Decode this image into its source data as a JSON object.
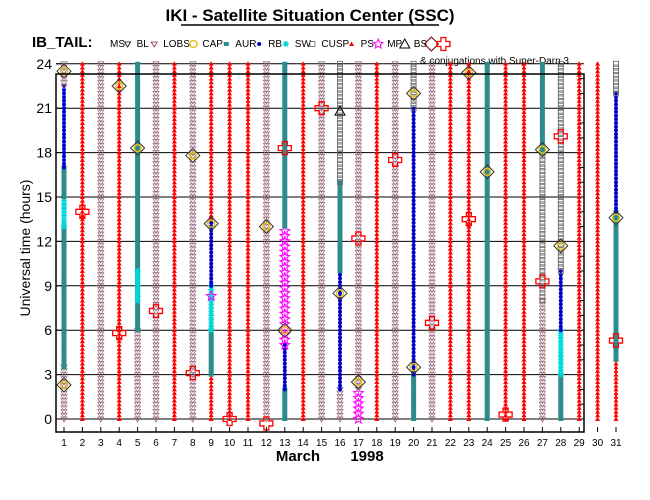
{
  "header": {
    "title": "IKI - Satellite Situation Center (SSC)",
    "satellite": "IB_TAIL:",
    "conjunction_note": "& conjugations with Super-Darn 3"
  },
  "legend": [
    {
      "label": "MS",
      "marker": "triangle-down-open",
      "color": "#000000"
    },
    {
      "label": "BL",
      "marker": "triangle-down-open",
      "color": "#8b2252"
    },
    {
      "label": "LOBS",
      "marker": "ring",
      "color": "#e6c21a"
    },
    {
      "label": "CAP",
      "marker": "square",
      "color": "#2e8b8b"
    },
    {
      "label": "AUR",
      "marker": "dot",
      "color": "#0000cc"
    },
    {
      "label": "RB",
      "marker": "asterisk",
      "color": "#00d8d8"
    },
    {
      "label": "SW",
      "marker": "square-open",
      "color": "#666666"
    },
    {
      "label": "CUSP",
      "marker": "triangle-up",
      "color": "#ff0000"
    },
    {
      "label": "PS",
      "marker": "star",
      "color": "#ff00ff"
    },
    {
      "label": "MP",
      "marker": "triangle-up-open",
      "color": "#000000"
    },
    {
      "label": "BS",
      "marker": "diamond-open",
      "color": "#6b0000"
    },
    {
      "label": "",
      "marker": "cross-open",
      "color": "#ff0000"
    }
  ],
  "chart_data": {
    "type": "scatter",
    "title": "IKI - Satellite Situation Center (SSC)",
    "xlabel": "March",
    "xlabel_year": "1998",
    "ylabel": "Universal time (hours)",
    "xlim": [
      1,
      31
    ],
    "ylim": [
      0,
      24
    ],
    "x_ticks": [
      1,
      2,
      3,
      4,
      5,
      6,
      7,
      8,
      9,
      10,
      11,
      12,
      13,
      14,
      15,
      16,
      17,
      18,
      19,
      20,
      21,
      22,
      23,
      24,
      25,
      26,
      27,
      28,
      29,
      30,
      31
    ],
    "y_ticks": [
      0,
      3,
      6,
      9,
      12,
      15,
      18,
      21,
      24
    ],
    "grid": true,
    "region_colors": {
      "MS": "#9a6b83",
      "CAP": "#2e8b8b",
      "AUR": "#0000cc",
      "RB": "#00d8d8",
      "SW": "#666666",
      "CUSP": "#ff0000",
      "PS": "#ff00ff"
    },
    "region_segments": [
      {
        "day": 1,
        "from": 0,
        "to": 3.5,
        "region": "MS"
      },
      {
        "day": 1,
        "from": 3.5,
        "to": 13,
        "region": "CAP"
      },
      {
        "day": 1,
        "from": 13,
        "to": 15,
        "region": "RB"
      },
      {
        "day": 1,
        "from": 15,
        "to": 17,
        "region": "CAP"
      },
      {
        "day": 1,
        "from": 17,
        "to": 22.5,
        "region": "AUR"
      },
      {
        "day": 1,
        "from": 22.5,
        "to": 24,
        "region": "MS"
      },
      {
        "day": 2,
        "from": 0,
        "to": 24,
        "region": "CUSP"
      },
      {
        "day": 3,
        "from": 0,
        "to": 24,
        "region": "MS"
      },
      {
        "day": 4,
        "from": 0,
        "to": 24,
        "region": "CUSP"
      },
      {
        "day": 5,
        "from": 0,
        "to": 6,
        "region": "MS"
      },
      {
        "day": 5,
        "from": 6,
        "to": 18,
        "region": "CAP"
      },
      {
        "day": 5,
        "from": 8,
        "to": 10,
        "region": "RB"
      },
      {
        "day": 5,
        "from": 18,
        "to": 24,
        "region": "CAP"
      },
      {
        "day": 6,
        "from": 0,
        "to": 24,
        "region": "MS"
      },
      {
        "day": 7,
        "from": 0,
        "to": 24,
        "region": "CUSP"
      },
      {
        "day": 8,
        "from": 0,
        "to": 24,
        "region": "MS"
      },
      {
        "day": 9,
        "from": 0,
        "to": 3,
        "region": "CUSP"
      },
      {
        "day": 9,
        "from": 3,
        "to": 6,
        "region": "CAP"
      },
      {
        "day": 9,
        "from": 6,
        "to": 9,
        "region": "RB"
      },
      {
        "day": 9,
        "from": 9,
        "to": 13.5,
        "region": "AUR"
      },
      {
        "day": 9,
        "from": 13.5,
        "to": 24,
        "region": "CUSP"
      },
      {
        "day": 10,
        "from": 0,
        "to": 24,
        "region": "CUSP"
      },
      {
        "day": 11,
        "from": 0,
        "to": 24,
        "region": "CUSP"
      },
      {
        "day": 12,
        "from": 0,
        "to": 24,
        "region": "MS"
      },
      {
        "day": 13,
        "from": 0,
        "to": 2,
        "region": "CAP"
      },
      {
        "day": 13,
        "from": 2,
        "to": 5,
        "region": "AUR"
      },
      {
        "day": 13,
        "from": 5,
        "to": 13,
        "region": "PS"
      },
      {
        "day": 13,
        "from": 13,
        "to": 24,
        "region": "CAP"
      },
      {
        "day": 14,
        "from": 0,
        "to": 24,
        "region": "CUSP"
      },
      {
        "day": 15,
        "from": 0,
        "to": 24,
        "region": "MS"
      },
      {
        "day": 16,
        "from": 0,
        "to": 2,
        "region": "MS"
      },
      {
        "day": 16,
        "from": 2,
        "to": 10,
        "region": "AUR"
      },
      {
        "day": 16,
        "from": 10,
        "to": 16,
        "region": "CAP"
      },
      {
        "day": 16,
        "from": 16,
        "to": 24,
        "region": "SW"
      },
      {
        "day": 17,
        "from": 0,
        "to": 2,
        "region": "PS"
      },
      {
        "day": 17,
        "from": 2,
        "to": 24,
        "region": "MS"
      },
      {
        "day": 18,
        "from": 0,
        "to": 24,
        "region": "CUSP"
      },
      {
        "day": 19,
        "from": 0,
        "to": 24,
        "region": "MS"
      },
      {
        "day": 20,
        "from": 0,
        "to": 3,
        "region": "CAP"
      },
      {
        "day": 20,
        "from": 3,
        "to": 9,
        "region": "AUR"
      },
      {
        "day": 20,
        "from": 9,
        "to": 21,
        "region": "AUR"
      },
      {
        "day": 20,
        "from": 21,
        "to": 24,
        "region": "SW"
      },
      {
        "day": 21,
        "from": 0,
        "to": 24,
        "region": "MS"
      },
      {
        "day": 22,
        "from": 0,
        "to": 24,
        "region": "CUSP"
      },
      {
        "day": 23,
        "from": 0,
        "to": 24,
        "region": "CUSP"
      },
      {
        "day": 24,
        "from": 0,
        "to": 24,
        "region": "CAP"
      },
      {
        "day": 25,
        "from": 0,
        "to": 24,
        "region": "CUSP"
      },
      {
        "day": 26,
        "from": 0,
        "to": 24,
        "region": "CUSP"
      },
      {
        "day": 27,
        "from": 0,
        "to": 8,
        "region": "MS"
      },
      {
        "day": 27,
        "from": 8,
        "to": 18,
        "region": "SW"
      },
      {
        "day": 27,
        "from": 18,
        "to": 24,
        "region": "CAP"
      },
      {
        "day": 28,
        "from": 0,
        "to": 3,
        "region": "CAP"
      },
      {
        "day": 28,
        "from": 3,
        "to": 6,
        "region": "RB"
      },
      {
        "day": 28,
        "from": 6,
        "to": 10,
        "region": "AUR"
      },
      {
        "day": 28,
        "from": 10,
        "to": 24,
        "region": "SW"
      },
      {
        "day": 29,
        "from": 0,
        "to": 24,
        "region": "CUSP"
      },
      {
        "day": 30,
        "from": 0,
        "to": 24,
        "region": "CUSP"
      },
      {
        "day": 31,
        "from": 0,
        "to": 4,
        "region": "CUSP"
      },
      {
        "day": 31,
        "from": 4,
        "to": 14,
        "region": "CAP"
      },
      {
        "day": 31,
        "from": 14,
        "to": 22,
        "region": "AUR"
      },
      {
        "day": 31,
        "from": 22,
        "to": 24,
        "region": "SW"
      }
    ],
    "crossings": [
      {
        "day": 1,
        "ut": 23.5,
        "type": "BS"
      },
      {
        "day": 1,
        "ut": 2.3,
        "type": "BS"
      },
      {
        "day": 2,
        "ut": 14,
        "type": "conj"
      },
      {
        "day": 4,
        "ut": 22.5,
        "type": "BS"
      },
      {
        "day": 4,
        "ut": 5.8,
        "type": "conj"
      },
      {
        "day": 5,
        "ut": 18.3,
        "type": "BS"
      },
      {
        "day": 6,
        "ut": 7.3,
        "type": "conj"
      },
      {
        "day": 8,
        "ut": 17.8,
        "type": "BS"
      },
      {
        "day": 8,
        "ut": 3.1,
        "type": "conj"
      },
      {
        "day": 9,
        "ut": 13.2,
        "type": "BS"
      },
      {
        "day": 9,
        "ut": 8.3,
        "type": "PS"
      },
      {
        "day": 10,
        "ut": 0,
        "type": "conj"
      },
      {
        "day": 12,
        "ut": 13,
        "type": "BS"
      },
      {
        "day": 12,
        "ut": -0.3,
        "type": "conj"
      },
      {
        "day": 13,
        "ut": 18.3,
        "type": "conj"
      },
      {
        "day": 13,
        "ut": 6,
        "type": "BS"
      },
      {
        "day": 15,
        "ut": 21,
        "type": "conj"
      },
      {
        "day": 16,
        "ut": 20.8,
        "type": "MP"
      },
      {
        "day": 16,
        "ut": 8.5,
        "type": "BS"
      },
      {
        "day": 17,
        "ut": 12.2,
        "type": "conj"
      },
      {
        "day": 17,
        "ut": 2.5,
        "type": "BS"
      },
      {
        "day": 19,
        "ut": 17.5,
        "type": "conj"
      },
      {
        "day": 20,
        "ut": 22,
        "type": "BS"
      },
      {
        "day": 20,
        "ut": 3.5,
        "type": "BS"
      },
      {
        "day": 21,
        "ut": 6.5,
        "type": "conj"
      },
      {
        "day": 23,
        "ut": 23.4,
        "type": "BS"
      },
      {
        "day": 23,
        "ut": 13.5,
        "type": "conj"
      },
      {
        "day": 24,
        "ut": 16.7,
        "type": "BS"
      },
      {
        "day": 25,
        "ut": 0.3,
        "type": "conj"
      },
      {
        "day": 27,
        "ut": 18.2,
        "type": "BS"
      },
      {
        "day": 27,
        "ut": 9.3,
        "type": "conj"
      },
      {
        "day": 28,
        "ut": 19.1,
        "type": "conj"
      },
      {
        "day": 28,
        "ut": 11.7,
        "type": "BS"
      },
      {
        "day": 31,
        "ut": 13.6,
        "type": "BS"
      },
      {
        "day": 31,
        "ut": 5.3,
        "type": "conj"
      }
    ]
  }
}
